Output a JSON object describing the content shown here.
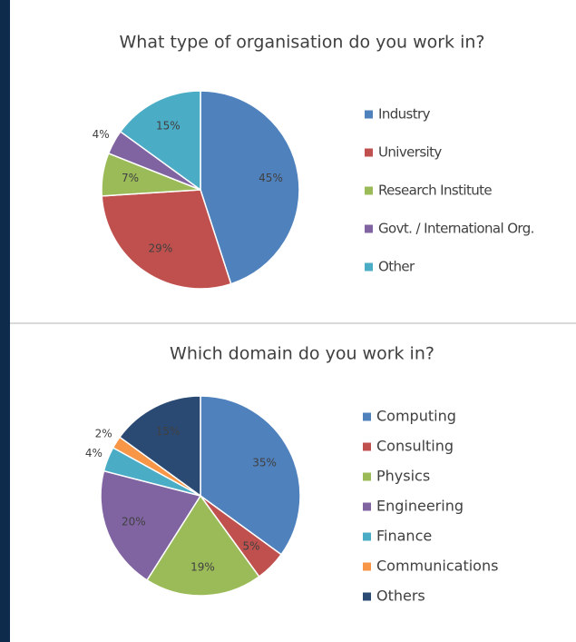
{
  "chart_data": [
    {
      "type": "pie",
      "title": "What type of organisation do you work in?",
      "categories": [
        "Industry",
        "University",
        "Research Institute",
        "Govt. / International Org.",
        "Other"
      ],
      "values": [
        45,
        29,
        7,
        4,
        15
      ],
      "value_labels": [
        "45%",
        "29%",
        "7%",
        "4%",
        "15%"
      ],
      "colors": [
        "#4f81bd",
        "#c0504d",
        "#9bbb59",
        "#8064a2",
        "#4bacc6"
      ]
    },
    {
      "type": "pie",
      "title": "Which domain do you work in?",
      "categories": [
        "Computing",
        "Consulting",
        "Physics",
        "Engineering",
        "Finance",
        "Communications",
        "Others"
      ],
      "values": [
        35,
        5,
        19,
        20,
        4,
        2,
        15
      ],
      "value_labels": [
        "35%",
        "5%",
        "19%",
        "20%",
        "4%",
        "2%",
        "15%"
      ],
      "colors": [
        "#4f81bd",
        "#c0504d",
        "#9bbb59",
        "#8064a2",
        "#4bacc6",
        "#f79646",
        "#2a4a74"
      ]
    }
  ]
}
